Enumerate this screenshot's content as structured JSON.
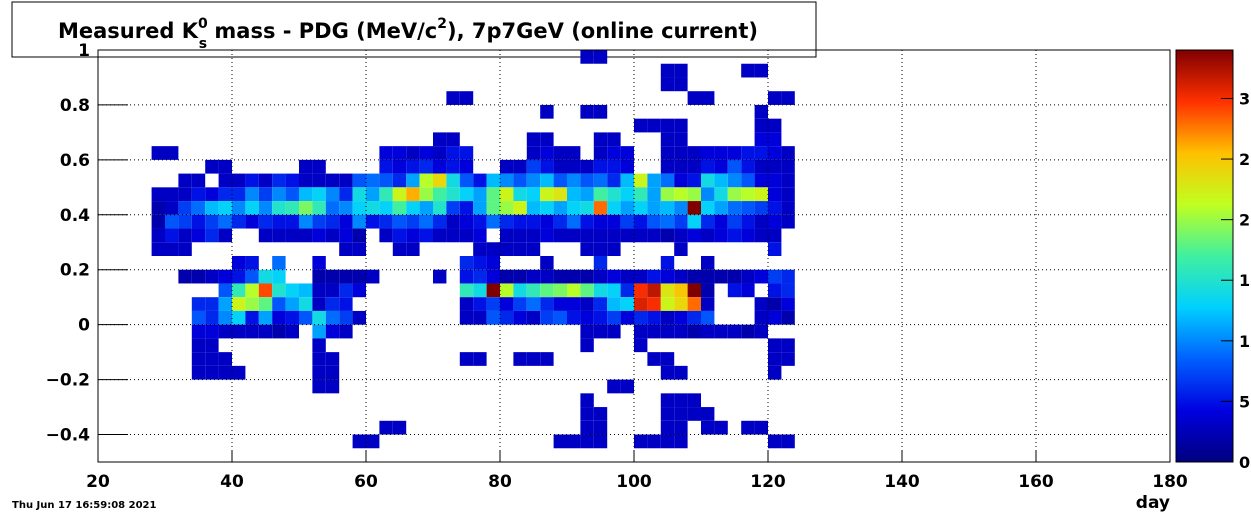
{
  "chart_data": {
    "type": "heatmap",
    "title": [
      "Measured K",
      "0",
      "s",
      " mass  - PDG (MeV/c",
      "2",
      "), 7p7GeV (online current)"
    ],
    "x_label": "day",
    "timestamp": "Thu Jun 17 16:59:08 2021",
    "xlim": [
      20,
      180
    ],
    "xticks": [
      20,
      40,
      60,
      80,
      100,
      120,
      140,
      160,
      180
    ],
    "ylim": [
      -0.5,
      1
    ],
    "yticks": [
      {
        "value": -0.4,
        "label": "−0.4"
      },
      {
        "value": -0.2,
        "label": "−0.2"
      },
      0,
      0.2,
      0.4,
      0.6,
      0.8,
      1
    ],
    "zlim": [
      0,
      34
    ],
    "zticks": [
      0,
      {
        "value": 5,
        "label": "5"
      },
      {
        "value": 10,
        "label": "1"
      },
      {
        "value": 15,
        "label": "1"
      },
      {
        "value": 20,
        "label": "2"
      },
      {
        "value": 25,
        "label": "2"
      },
      {
        "value": 30,
        "label": "3"
      }
    ],
    "bin_width": [
      2,
      0.05
    ],
    "grid": true,
    "palette": [
      "#000080",
      "#0000e0",
      "#0060ff",
      "#00d0ff",
      "#40f0a0",
      "#c0ff20",
      "#ffc000",
      "#ff3000",
      "#800000"
    ],
    "rows": [
      {
        "y": 0.95,
        "x": [
          92,
          94
        ],
        "z": [
          3,
          3
        ]
      },
      {
        "y": 0.9,
        "x": [
          104,
          106,
          116,
          118
        ],
        "z": [
          3,
          3,
          3,
          3
        ]
      },
      {
        "y": 0.85,
        "x": [
          104,
          106
        ],
        "z": [
          3,
          3
        ]
      },
      {
        "y": 0.8,
        "x": [
          72,
          74,
          108,
          110,
          120,
          122
        ],
        "z": [
          3,
          3,
          3,
          3,
          3,
          3
        ]
      },
      {
        "y": 0.75,
        "x": [
          86,
          92,
          94,
          118
        ],
        "z": [
          3,
          3,
          3,
          3
        ]
      },
      {
        "y": 0.7,
        "x": [
          100,
          102,
          104,
          106,
          118,
          120
        ],
        "z": [
          3,
          3,
          3,
          3,
          3,
          3
        ]
      },
      {
        "y": 0.65,
        "x": [
          70,
          72,
          84,
          86,
          94,
          96,
          104,
          106,
          118,
          120
        ],
        "z": [
          3,
          3,
          3,
          3,
          3,
          3,
          3,
          3,
          4,
          4
        ]
      },
      {
        "y": 0.6,
        "x": [
          28,
          30,
          62,
          64,
          66,
          68,
          70,
          72,
          74,
          84,
          86,
          88,
          90,
          94,
          96,
          98,
          104,
          106,
          108,
          110,
          112,
          114,
          116,
          118,
          120,
          122
        ],
        "z": [
          3,
          3,
          4,
          4,
          3,
          4,
          3,
          5,
          5,
          3,
          4,
          3,
          3,
          3,
          4,
          4,
          3,
          3,
          3,
          4,
          4,
          4,
          5,
          5,
          4,
          3
        ]
      },
      {
        "y": 0.55,
        "x": [
          36,
          38,
          50,
          52,
          62,
          64,
          66,
          68,
          70,
          72,
          74,
          80,
          82,
          84,
          86,
          88,
          90,
          92,
          94,
          96,
          98,
          104,
          106,
          108,
          110,
          112,
          114,
          116,
          118,
          120,
          122
        ],
        "z": [
          3,
          3,
          3,
          3,
          5,
          4,
          5,
          6,
          4,
          5,
          4,
          3,
          3,
          7,
          5,
          3,
          3,
          3,
          5,
          5,
          4,
          3,
          3,
          3,
          5,
          4,
          8,
          5,
          3,
          3,
          3
        ]
      },
      {
        "y": 0.5,
        "x": [
          32,
          34,
          38,
          40,
          42,
          44,
          46,
          48,
          50,
          52,
          54,
          56,
          58,
          60,
          62,
          64,
          66,
          68,
          70,
          72,
          74,
          76,
          78,
          80,
          82,
          84,
          86,
          88,
          90,
          92,
          94,
          96,
          98,
          100,
          102,
          104,
          106,
          108,
          110,
          112,
          114,
          116,
          118,
          120,
          122
        ],
        "z": [
          3,
          3,
          3,
          3,
          5,
          3,
          6,
          5,
          3,
          3,
          3,
          3,
          8,
          9,
          8,
          6,
          11,
          21,
          24,
          14,
          8,
          5,
          12,
          10,
          8,
          10,
          12,
          8,
          10,
          8,
          9,
          6,
          12,
          22,
          11,
          9,
          4,
          5,
          14,
          12,
          10,
          8,
          4,
          4,
          3
        ]
      },
      {
        "y": 0.45,
        "x": [
          28,
          30,
          32,
          34,
          36,
          38,
          40,
          42,
          44,
          46,
          48,
          50,
          52,
          54,
          56,
          58,
          60,
          62,
          64,
          66,
          68,
          70,
          72,
          74,
          76,
          78,
          80,
          82,
          84,
          86,
          88,
          90,
          92,
          94,
          96,
          98,
          100,
          102,
          104,
          106,
          108,
          110,
          112,
          114,
          116,
          118,
          120,
          122
        ],
        "z": [
          3,
          3,
          3,
          5,
          4,
          6,
          6,
          10,
          7,
          10,
          8,
          12,
          13,
          10,
          6,
          14,
          11,
          16,
          22,
          26,
          20,
          17,
          15,
          13,
          11,
          18,
          22,
          14,
          13,
          22,
          23,
          12,
          11,
          17,
          15,
          13,
          16,
          11,
          20,
          21,
          20,
          10,
          14,
          20,
          21,
          22,
          4,
          3
        ]
      },
      {
        "y": 0.4,
        "x": [
          28,
          30,
          32,
          34,
          36,
          38,
          40,
          42,
          44,
          46,
          48,
          50,
          52,
          54,
          56,
          58,
          60,
          62,
          64,
          66,
          68,
          70,
          72,
          74,
          76,
          78,
          80,
          82,
          84,
          86,
          88,
          90,
          92,
          94,
          96,
          98,
          100,
          102,
          104,
          106,
          108,
          110,
          112,
          114,
          116,
          118,
          120,
          122
        ],
        "z": [
          2,
          3,
          7,
          9,
          12,
          13,
          10,
          13,
          10,
          15,
          16,
          19,
          16,
          9,
          10,
          13,
          14,
          13,
          17,
          13,
          11,
          15,
          7,
          5,
          11,
          18,
          20,
          22,
          12,
          13,
          11,
          13,
          14,
          28,
          13,
          11,
          13,
          11,
          12,
          10,
          34,
          13,
          11,
          9,
          8,
          7,
          5,
          3
        ]
      },
      {
        "y": 0.35,
        "x": [
          28,
          30,
          32,
          34,
          36,
          38,
          40,
          42,
          44,
          46,
          48,
          50,
          52,
          54,
          56,
          58,
          60,
          62,
          64,
          66,
          68,
          70,
          72,
          74,
          76,
          78,
          80,
          82,
          84,
          86,
          88,
          90,
          92,
          94,
          96,
          98,
          100,
          102,
          104,
          106,
          108,
          110,
          112,
          114,
          116,
          118,
          120,
          122
        ],
        "z": [
          2,
          8,
          7,
          5,
          7,
          9,
          6,
          4,
          6,
          5,
          5,
          10,
          7,
          6,
          4,
          10,
          5,
          6,
          8,
          7,
          9,
          6,
          3,
          4,
          5,
          9,
          6,
          5,
          5,
          4,
          6,
          9,
          5,
          4,
          4,
          7,
          5,
          8,
          9,
          7,
          13,
          6,
          4,
          7,
          5,
          3,
          4,
          3
        ]
      },
      {
        "y": 0.3,
        "x": [
          28,
          30,
          32,
          34,
          36,
          38,
          44,
          46,
          48,
          50,
          52,
          54,
          56,
          58,
          62,
          64,
          66,
          68,
          70,
          72,
          74,
          76,
          80,
          82,
          84,
          86,
          88,
          90,
          92,
          94,
          96,
          98,
          100,
          102,
          104,
          106,
          108,
          110,
          112,
          114,
          116,
          118,
          120
        ],
        "z": [
          3,
          5,
          3,
          4,
          6,
          3,
          3,
          3,
          3,
          3,
          4,
          3,
          4,
          2,
          3,
          5,
          4,
          5,
          3,
          3,
          3,
          4,
          3,
          3,
          3,
          4,
          3,
          3,
          3,
          3,
          3,
          3,
          3,
          3,
          2,
          3,
          4,
          3,
          4,
          5,
          4,
          3,
          3
        ]
      },
      {
        "y": 0.25,
        "x": [
          28,
          30,
          32,
          56,
          58,
          64,
          66,
          76,
          78,
          80,
          82,
          84,
          92,
          94,
          96,
          106,
          120
        ],
        "z": [
          3,
          3,
          3,
          3,
          3,
          3,
          3,
          3,
          3,
          3,
          3,
          3,
          3,
          3,
          3,
          3,
          5
        ]
      },
      {
        "y": 0.2,
        "x": [
          40,
          42,
          46,
          52,
          74,
          76,
          78,
          86,
          94,
          104,
          110
        ],
        "z": [
          4,
          5,
          9,
          4,
          6,
          5,
          4,
          3,
          6,
          5,
          3
        ]
      },
      {
        "y": 0.15,
        "x": [
          32,
          34,
          36,
          38,
          40,
          42,
          44,
          46,
          52,
          54,
          56,
          58,
          60,
          70,
          74,
          76,
          78,
          80,
          82,
          84,
          86,
          88,
          90,
          92,
          94,
          96,
          98,
          100,
          102,
          104,
          106,
          108,
          110,
          112,
          114,
          116,
          118,
          120,
          122
        ],
        "z": [
          2,
          2,
          3,
          4,
          5,
          8,
          14,
          13,
          2,
          2,
          2,
          2,
          3,
          3,
          5,
          6,
          4,
          2,
          2,
          3,
          3,
          2,
          2,
          2,
          3,
          4,
          3,
          3,
          5,
          4,
          3,
          2,
          2,
          2,
          2,
          3,
          4,
          7,
          6
        ]
      },
      {
        "y": 0.1,
        "x": [
          38,
          40,
          42,
          44,
          46,
          48,
          50,
          52,
          54,
          56,
          58,
          74,
          76,
          78,
          80,
          82,
          84,
          86,
          88,
          90,
          92,
          94,
          96,
          98,
          100,
          102,
          104,
          106,
          108,
          110,
          114,
          116,
          120,
          122
        ],
        "z": [
          8,
          16,
          21,
          29,
          15,
          13,
          12,
          3,
          3,
          6,
          4,
          16,
          14,
          34,
          21,
          14,
          16,
          18,
          19,
          21,
          18,
          14,
          13,
          6,
          30,
          32,
          23,
          25,
          34,
          2,
          5,
          4,
          5,
          6
        ]
      },
      {
        "y": 0.05,
        "x": [
          34,
          36,
          38,
          40,
          42,
          44,
          46,
          48,
          50,
          52,
          54,
          56,
          74,
          76,
          78,
          80,
          82,
          84,
          86,
          88,
          90,
          92,
          94,
          96,
          98,
          100,
          102,
          104,
          106,
          108,
          110,
          118,
          120,
          122
        ],
        "z": [
          6,
          6,
          11,
          22,
          20,
          18,
          8,
          11,
          14,
          3,
          6,
          5,
          3,
          5,
          7,
          4,
          7,
          9,
          6,
          4,
          4,
          3,
          6,
          12,
          13,
          31,
          30,
          22,
          24,
          28,
          3,
          3,
          2,
          4
        ]
      },
      {
        "y": 0,
        "x": [
          34,
          36,
          38,
          40,
          42,
          44,
          46,
          48,
          50,
          52,
          54,
          56,
          58,
          74,
          76,
          78,
          80,
          82,
          84,
          86,
          88,
          90,
          92,
          94,
          96,
          98,
          100,
          102,
          104,
          106,
          108,
          110,
          118,
          120,
          122
        ],
        "z": [
          8,
          6,
          10,
          13,
          5,
          11,
          4,
          5,
          8,
          14,
          9,
          7,
          3,
          3,
          3,
          8,
          6,
          4,
          3,
          7,
          8,
          5,
          4,
          5,
          7,
          4,
          6,
          5,
          3,
          4,
          6,
          8,
          3,
          4,
          2
        ]
      },
      {
        "y": -0.05,
        "x": [
          34,
          36,
          38,
          40,
          42,
          44,
          46,
          48,
          52,
          54,
          56,
          92,
          94,
          96,
          100,
          102,
          104,
          106,
          108,
          110,
          112,
          114,
          116,
          118
        ],
        "z": [
          4,
          4,
          3,
          3,
          3,
          3,
          2,
          3,
          11,
          4,
          3,
          3,
          3,
          3,
          3,
          3,
          3,
          3,
          2,
          3,
          3,
          3,
          2,
          3
        ]
      },
      {
        "y": -0.1,
        "x": [
          34,
          36,
          52,
          92,
          100,
          120,
          122
        ],
        "z": [
          3,
          3,
          3,
          3,
          3,
          3,
          3
        ]
      },
      {
        "y": -0.15,
        "x": [
          34,
          36,
          38,
          52,
          54,
          74,
          76,
          82,
          84,
          86,
          102,
          104,
          120,
          122
        ],
        "z": [
          3,
          3,
          3,
          3,
          3,
          3,
          3,
          3,
          3,
          3,
          3,
          3,
          3,
          3
        ]
      },
      {
        "y": -0.2,
        "x": [
          34,
          36,
          38,
          40,
          52,
          54,
          104,
          106,
          120
        ],
        "z": [
          3,
          3,
          3,
          3,
          3,
          3,
          3,
          3,
          3
        ]
      },
      {
        "y": -0.25,
        "x": [
          52,
          54,
          96,
          98
        ],
        "z": [
          3,
          3,
          3,
          3
        ]
      },
      {
        "y": -0.3,
        "x": [
          92,
          104,
          106,
          108
        ],
        "z": [
          3,
          3,
          3,
          3
        ]
      },
      {
        "y": -0.35,
        "x": [
          92,
          94,
          104,
          106,
          108,
          110
        ],
        "z": [
          3,
          3,
          3,
          3,
          3,
          3
        ]
      },
      {
        "y": -0.4,
        "x": [
          62,
          64,
          92,
          94,
          104,
          106,
          110,
          112,
          116,
          118
        ],
        "z": [
          3,
          3,
          3,
          3,
          3,
          3,
          3,
          3,
          3,
          3
        ]
      },
      {
        "y": -0.45,
        "x": [
          58,
          60,
          88,
          90,
          92,
          94,
          100,
          102,
          104,
          106,
          120,
          122
        ],
        "z": [
          3,
          3,
          3,
          3,
          3,
          3,
          3,
          3,
          3,
          3,
          3,
          3
        ]
      }
    ]
  }
}
